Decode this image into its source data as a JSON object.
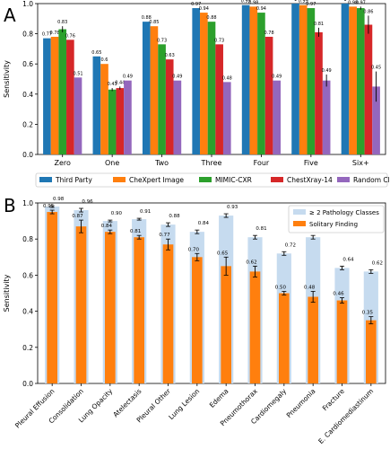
{
  "chart_data": [
    {
      "panel_label": "A",
      "type": "bar",
      "ylabel": "Sensitivity",
      "ylim": [
        0,
        1.0
      ],
      "yticks": [
        "0.0",
        "0.2",
        "0.4",
        "0.6",
        "0.8",
        "1.0"
      ],
      "categories": [
        "Zero",
        "One",
        "Two",
        "Three",
        "Four",
        "Five",
        "Six+"
      ],
      "legend_position": "below",
      "series": [
        {
          "name": "Third Party",
          "color": "#1f77b4",
          "values": [
            0.77,
            0.65,
            0.88,
            0.97,
            0.99,
            1.0,
            1.0
          ],
          "labels": [
            "0.77",
            "0.65",
            "0.88",
            "0.97",
            "0.99",
            "1",
            "1"
          ],
          "err": [
            0,
            0,
            0,
            0,
            0,
            0,
            0
          ]
        },
        {
          "name": "CheXpert Image",
          "color": "#ff7f0e",
          "values": [
            0.78,
            0.6,
            0.85,
            0.94,
            0.98,
            0.99,
            0.98
          ],
          "labels": [
            "0.78",
            "0.6",
            "0.85",
            "0.94",
            "0.98",
            "0.99",
            "0.98"
          ],
          "err": [
            0,
            0,
            0,
            0,
            0,
            0,
            0
          ]
        },
        {
          "name": "MIMIC-CXR",
          "color": "#2ca02c",
          "values": [
            0.83,
            0.43,
            0.73,
            0.88,
            0.94,
            0.97,
            0.97
          ],
          "labels": [
            "0.83",
            "0.43",
            "0.73",
            "0.88",
            "0.94",
            "0.97",
            "0.97"
          ],
          "err": [
            0.02,
            0.01,
            0,
            0,
            0,
            0,
            0.01
          ]
        },
        {
          "name": "ChestXray-14",
          "color": "#d62728",
          "values": [
            0.76,
            0.44,
            0.63,
            0.73,
            0.78,
            0.81,
            0.86
          ],
          "labels": [
            "0.76",
            "0.44",
            "0.63",
            "0.73",
            "0.78",
            "0.81",
            "0.86"
          ],
          "err": [
            0,
            0.01,
            0,
            0,
            0,
            0.03,
            0.06
          ]
        },
        {
          "name": "Random Classifier",
          "color": "#9467bd",
          "values": [
            0.51,
            0.49,
            0.49,
            0.48,
            0.49,
            0.49,
            0.45
          ],
          "labels": [
            "0.51",
            "0.49",
            "0.49",
            "0.48",
            "0.49",
            "0.49",
            "0.45"
          ],
          "err": [
            0,
            0,
            0,
            0,
            0,
            0.04,
            0.1
          ]
        }
      ]
    },
    {
      "panel_label": "B",
      "type": "bar",
      "ylabel": "Sensitivity",
      "ylim": [
        0,
        1.0
      ],
      "yticks": [
        "0.0",
        "0.2",
        "0.4",
        "0.6",
        "0.8",
        "1.0"
      ],
      "categories": [
        "Pleural Effusion",
        "Consolidation",
        "Lung Opacity",
        "Atelectasis",
        "Pleural Other",
        "Lung Lesion",
        "Edema",
        "Pneumothorax",
        "Cardiomegaly",
        "Pneumonia",
        "Fracture",
        "E. Cardiomediastinum"
      ],
      "legend_position": "top-right",
      "series": [
        {
          "name": "≥ 2 Pathology Classes",
          "color": "#c6dbef",
          "values": [
            0.98,
            0.96,
            0.9,
            0.91,
            0.88,
            0.84,
            0.93,
            0.81,
            0.72,
            0.81,
            0.64,
            0.62
          ],
          "labels": [
            "0.98",
            "0.96",
            "0.90",
            "0.91",
            "0.88",
            "0.84",
            "0.93",
            "0.81",
            "0.72",
            "0.81",
            "0.64",
            "0.62"
          ],
          "err": [
            0.005,
            0.01,
            0.005,
            0.005,
            0.01,
            0.01,
            0.01,
            0.01,
            0.01,
            0.01,
            0.01,
            0.01
          ]
        },
        {
          "name": "Solitary Finding",
          "color": "#ff7f0e",
          "values": [
            0.95,
            0.87,
            0.84,
            0.81,
            0.77,
            0.7,
            0.65,
            0.62,
            0.5,
            0.48,
            0.46,
            0.35
          ],
          "labels": [
            "0.95",
            "0.87",
            "0.84",
            "0.81",
            "0.77",
            "0.70",
            "0.65",
            "0.62",
            "0.50",
            "0.48",
            "0.46",
            "0.35"
          ],
          "err": [
            0.01,
            0.035,
            0.01,
            0.01,
            0.03,
            0.02,
            0.05,
            0.03,
            0.01,
            0.03,
            0.015,
            0.02
          ]
        }
      ]
    }
  ]
}
